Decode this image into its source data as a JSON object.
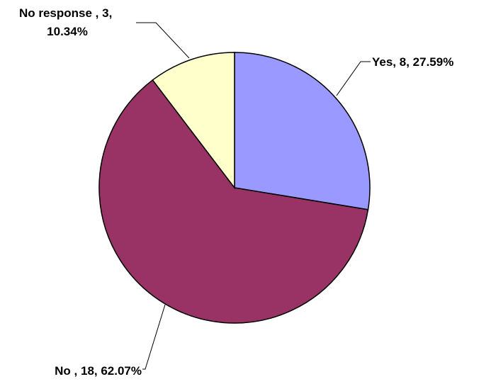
{
  "chart_data": {
    "type": "pie",
    "title": "",
    "slices": [
      {
        "label": "Yes",
        "value": 8,
        "percent": 27.59,
        "color": "#9999ff",
        "data_label": "Yes, 8, 27.59%"
      },
      {
        "label": "No",
        "value": 18,
        "percent": 62.07,
        "color": "#993366",
        "data_label": "No , 18, 62.07%"
      },
      {
        "label": "No response",
        "value": 3,
        "percent": 10.34,
        "color": "#ffffcc",
        "data_label_lines": [
          "No response , 3,",
          "10.34%"
        ]
      }
    ],
    "start_angle": "12 o'clock",
    "direction": "clockwise",
    "legend": "none"
  }
}
